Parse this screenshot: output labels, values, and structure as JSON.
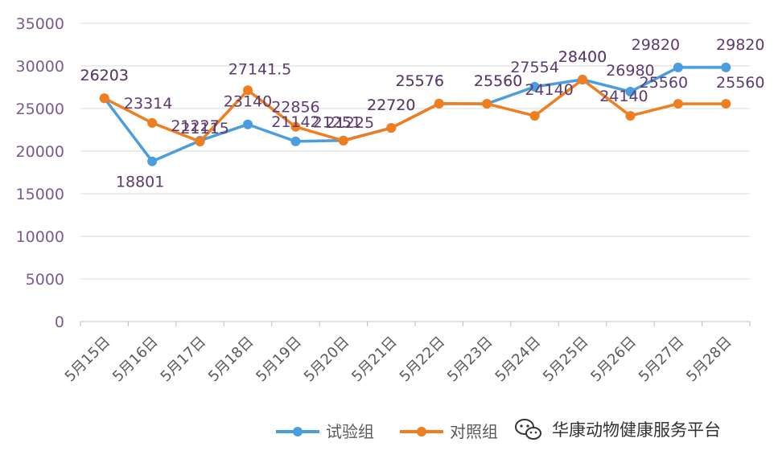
{
  "chart_data": {
    "type": "line",
    "title": "",
    "xlabel": "",
    "ylabel": "",
    "ylim": [
      0,
      35000
    ],
    "yticks": [
      0,
      5000,
      10000,
      15000,
      20000,
      25000,
      30000,
      35000
    ],
    "grid": true,
    "legend_position": "bottom",
    "categories": [
      "5月15日",
      "5月16日",
      "5月17日",
      "5月18日",
      "5月19日",
      "5月20日",
      "5月21日",
      "5月22日",
      "5月23日",
      "5月24日",
      "5月25日",
      "5月26日",
      "5月27日",
      "5月28日"
    ],
    "series": [
      {
        "name": "试验组",
        "color": "#4a9ee0",
        "values": [
          26203,
          18801,
          21227,
          23140,
          21142,
          21251,
          22720,
          25576,
          25560,
          27554,
          28400,
          26980,
          29820,
          29820
        ],
        "labels": [
          "26203",
          "18801",
          "21227",
          "23140",
          "21142",
          "21251",
          "22720",
          "25576",
          "25560",
          "27554",
          "28400",
          "26980",
          "29820",
          "29820"
        ]
      },
      {
        "name": "对照组",
        "color": "#f07d1e",
        "values": [
          26203,
          23314,
          21115,
          27141.5,
          22856,
          21225,
          22720,
          25576,
          25560,
          24140,
          28400,
          24140,
          25560,
          25560
        ],
        "labels": [
          "26203",
          "23314",
          "21115",
          "27141.5",
          "22856",
          "21225",
          "22720",
          "25576",
          "25560",
          "24140",
          "28400",
          "24140",
          "25560",
          "25560"
        ]
      }
    ]
  },
  "watermark": {
    "text": "华康动物健康服务平台",
    "icon": "wechat-icon"
  }
}
